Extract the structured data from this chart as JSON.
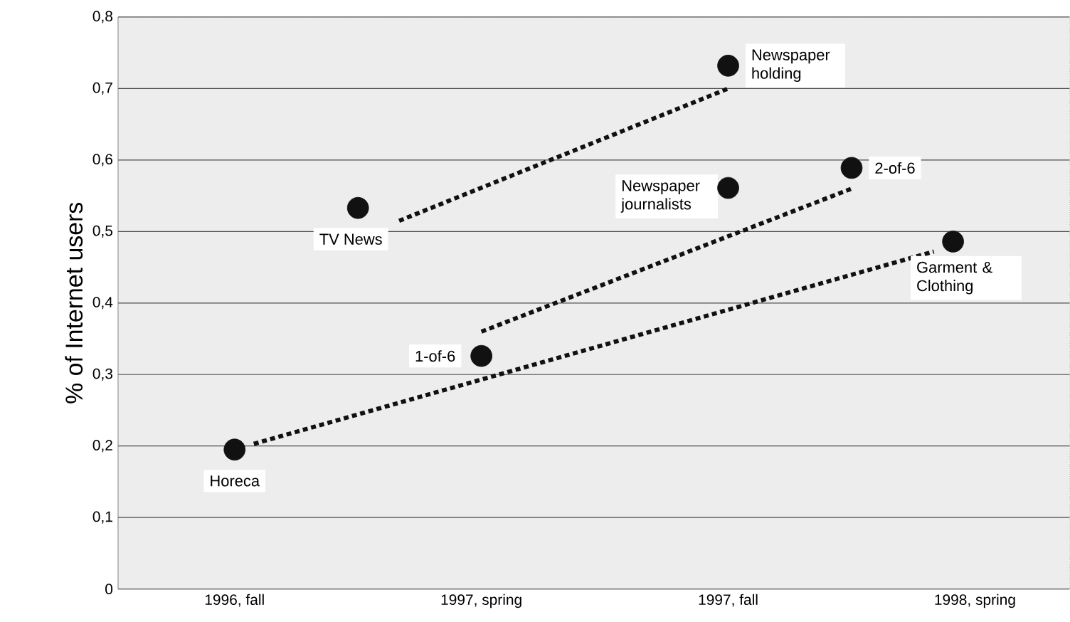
{
  "chart_data": {
    "type": "scatter",
    "ylabel": "% of Internet users",
    "xlim": [
      "1996-07-06",
      "1998-06-10"
    ],
    "xticks": [
      {
        "value": "1996-10",
        "label": "1996, fall"
      },
      {
        "value": "1997-04",
        "label": "1997, spring"
      },
      {
        "value": "1997-10",
        "label": "1997, fall"
      },
      {
        "value": "1998-04",
        "label": "1998, spring"
      }
    ],
    "ylim": [
      0,
      0.8
    ],
    "yticks": [
      {
        "value": 0,
        "label": "0"
      },
      {
        "value": 0.1,
        "label": "0,1"
      },
      {
        "value": 0.2,
        "label": "0,2"
      },
      {
        "value": 0.3,
        "label": "0,3"
      },
      {
        "value": 0.4,
        "label": "0,4"
      },
      {
        "value": 0.5,
        "label": "0,5"
      },
      {
        "value": 0.6,
        "label": "0,6"
      },
      {
        "value": 0.7,
        "label": "0,7"
      },
      {
        "value": 0.8,
        "label": "0,8"
      }
    ],
    "grid": "y",
    "series": [
      {
        "type": "line",
        "line_style": "dotted",
        "color": "#111111",
        "marker": "none",
        "x": [
          "1997-02-01",
          "1997-10"
        ],
        "values": [
          0.515,
          0.7
        ]
      },
      {
        "type": "line",
        "line_style": "dotted",
        "color": "#111111",
        "marker": "none",
        "x": [
          "1997-04",
          "1998-01-01"
        ],
        "values": [
          0.36,
          0.56
        ]
      },
      {
        "type": "line",
        "line_style": "dotted",
        "color": "#111111",
        "marker": "none",
        "x": [
          "1996-10-15",
          "1998-03-01"
        ],
        "values": [
          0.203,
          0.472
        ]
      },
      {
        "color": "#111111",
        "marker": "circle",
        "x": [
          "1996-10",
          "1997-01",
          "1997-04",
          "1997-10",
          "1997-10",
          "1998-01",
          "1998-03-15"
        ],
        "values": [
          0.195,
          0.533,
          0.326,
          0.732,
          0.561,
          0.589,
          0.486
        ]
      }
    ],
    "annotations": [
      {
        "text": "Horeca",
        "x": "1996-10",
        "y": 0.195
      },
      {
        "text": "TV News",
        "x": "1997-01",
        "y": 0.533
      },
      {
        "text": "1-of-6",
        "x": "1997-04",
        "y": 0.326
      },
      {
        "text": "Newspaper holding",
        "x": "1997-10",
        "y": 0.732
      },
      {
        "text": "Newspaper journalists",
        "x": "1997-10",
        "y": 0.561
      },
      {
        "text": "2-of-6",
        "x": "1998-01",
        "y": 0.589
      },
      {
        "text": "Garment & Clothing",
        "x": "1998-03-15",
        "y": 0.486
      }
    ]
  }
}
